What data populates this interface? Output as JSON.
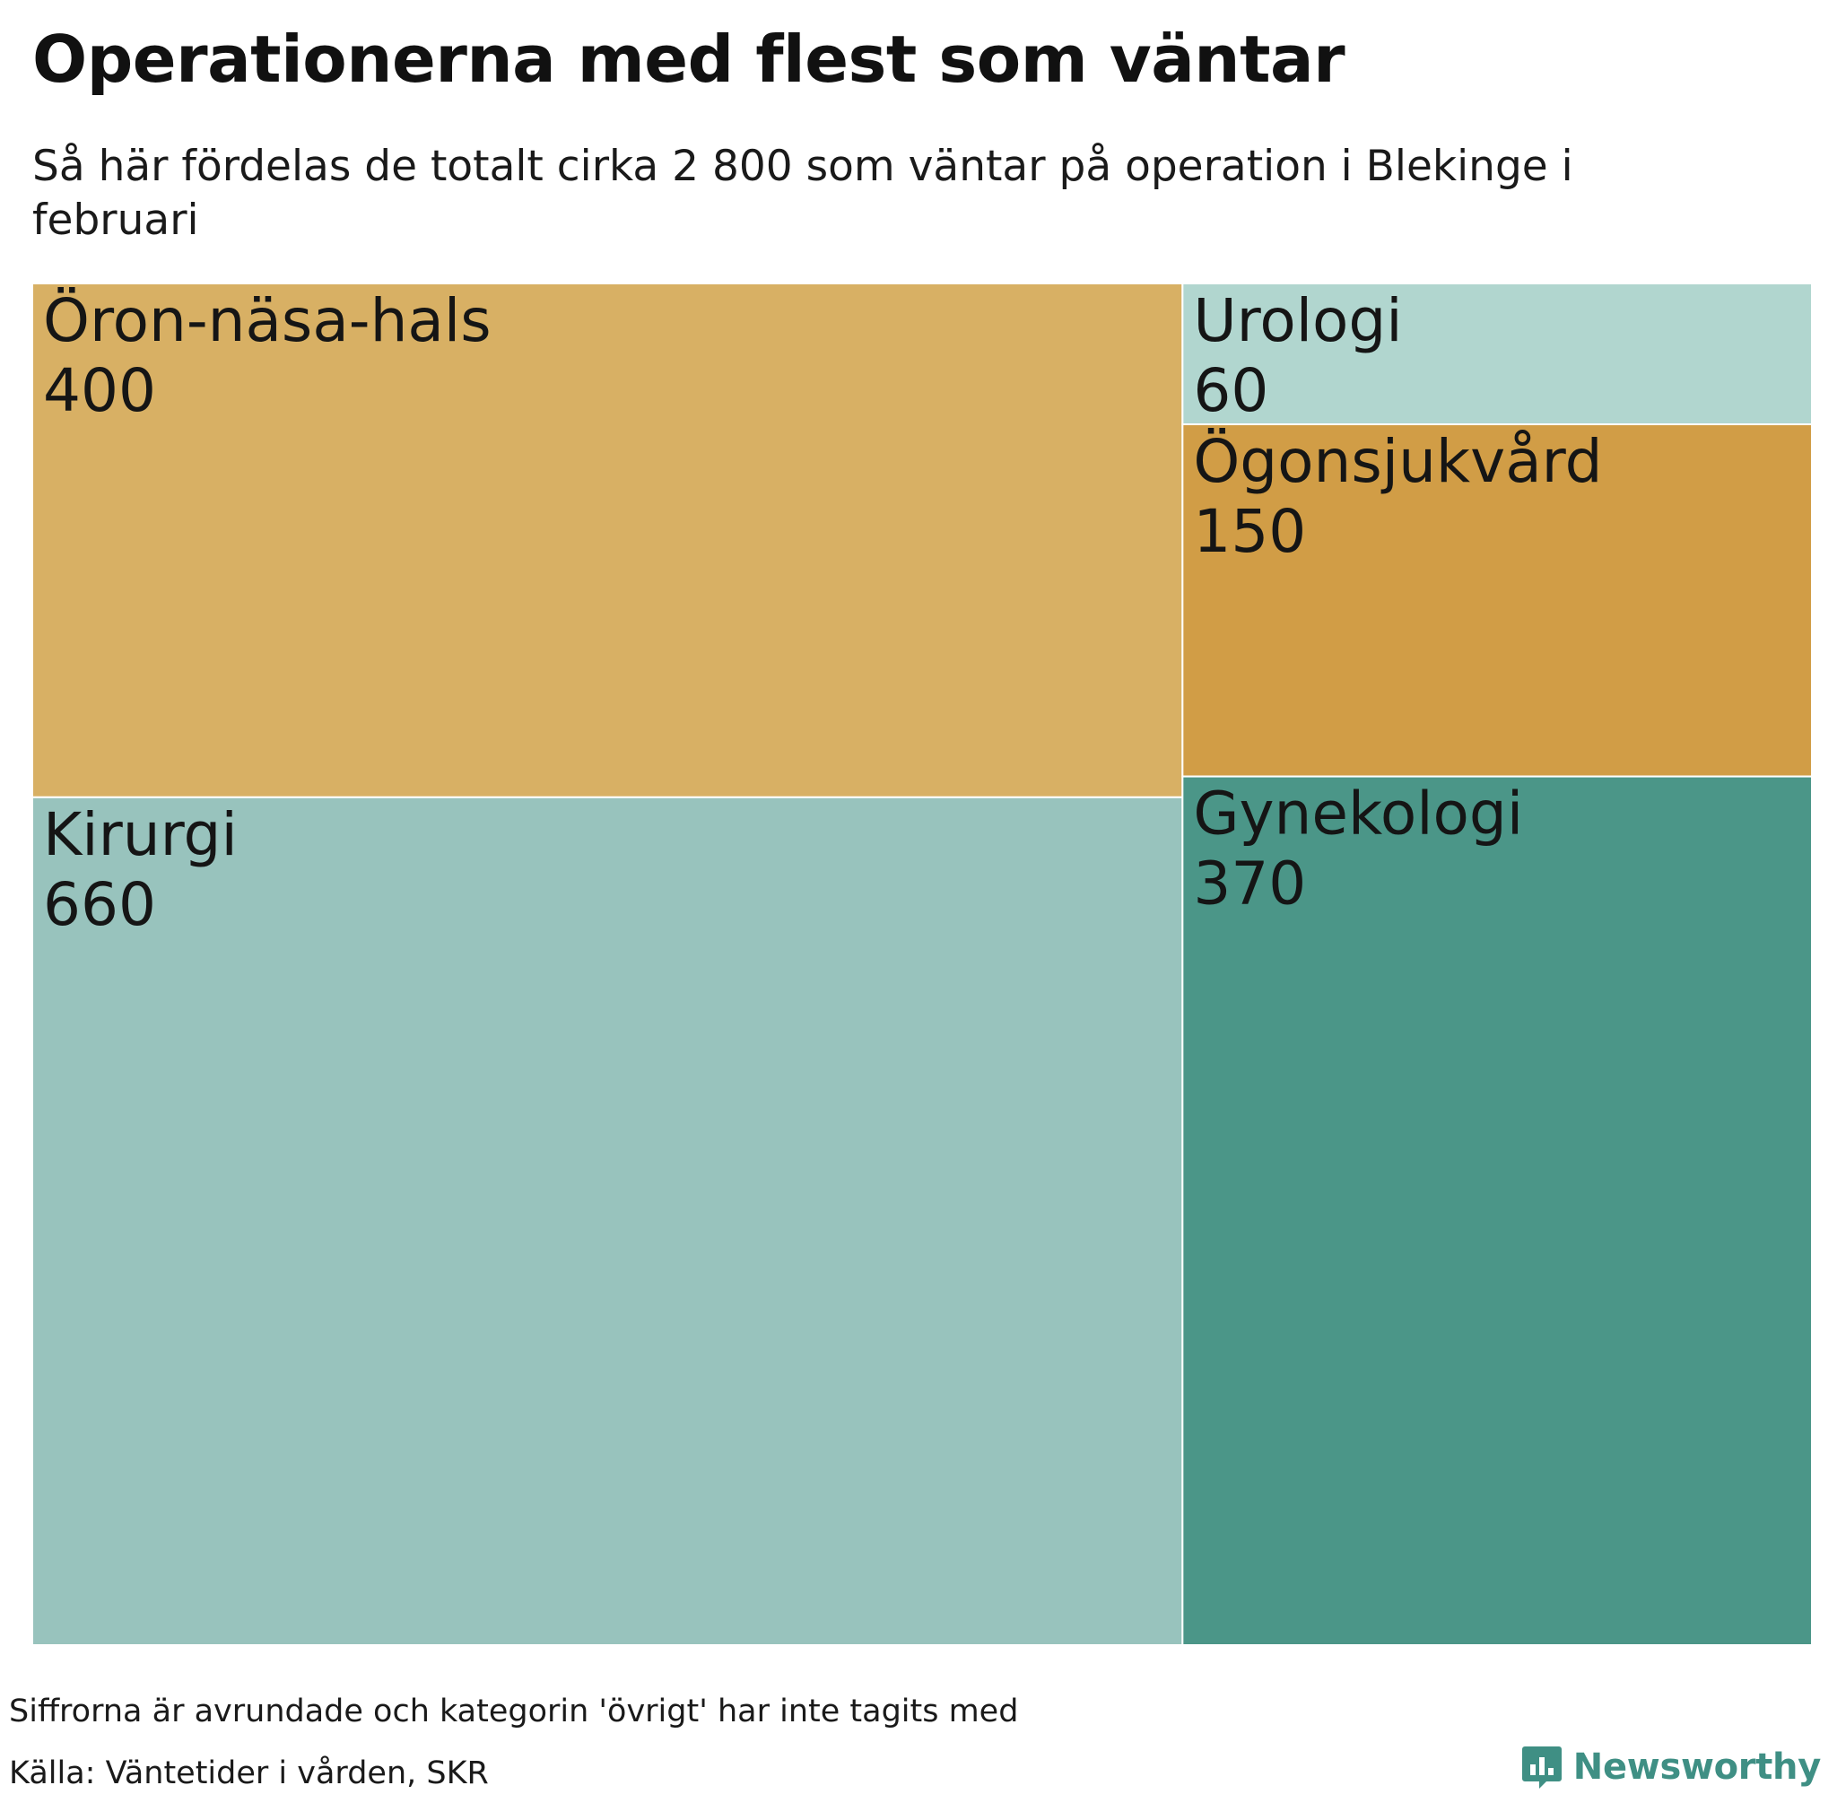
{
  "chart_data": {
    "type": "treemap",
    "title": "Operationerna med flest som väntar",
    "subtitle": "Så här fördelas de totalt cirka 2 800 som väntar på operation i Blekinge i februari",
    "tiles": [
      {
        "name": "Öron-näsa-hals",
        "value": 400,
        "value_label": "400",
        "color": "#d8b064"
      },
      {
        "name": "Kirurgi",
        "value": 660,
        "value_label": "660",
        "color": "#98c3bd"
      },
      {
        "name": "Urologi",
        "value": 60,
        "value_label": " 60",
        "color": "#b1d6cf"
      },
      {
        "name": "Ögonsjukvård",
        "value": 150,
        "value_label": "150",
        "color": "#d19d46"
      },
      {
        "name": "Gynekologi",
        "value": 370,
        "value_label": "370",
        "color": "#4b9688"
      }
    ]
  },
  "footer": {
    "note": "Siffrorna är avrundade och kategorin 'övrigt' har inte tagits med",
    "source": "Källa: Väntetider i vården, SKR"
  },
  "brand": {
    "name": "Newsworthy",
    "icon": "newsworthy-logo-icon",
    "color": "#3f8f84"
  }
}
